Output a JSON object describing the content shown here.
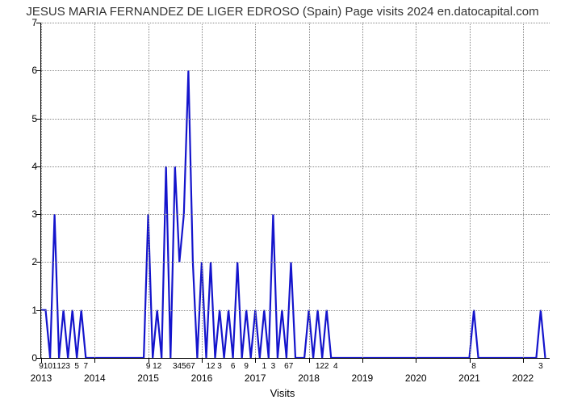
{
  "chart": {
    "type": "line",
    "title": "JESUS MARIA FERNANDEZ DE LIGER EDROSO (Spain) Page visits 2024 en.datocapital.com",
    "title_fontsize": 15,
    "background_color": "#ffffff",
    "line_color": "#1414cc",
    "line_width": 2.2,
    "grid_color": "#888888",
    "grid_dotted": true,
    "xaxis_title": "Visits",
    "label_fontsize": 12,
    "ylim": [
      0,
      7
    ],
    "ytick_step": 1,
    "year_start": 2013,
    "year_end": 2022,
    "years": [
      "2013",
      "2014",
      "2015",
      "2016",
      "2017",
      "2018",
      "2019",
      "2020",
      "2021",
      "2022"
    ],
    "minor_labels": [
      {
        "year": 2013,
        "sub": 0,
        "t": "9"
      },
      {
        "year": 2013,
        "sub": 1,
        "t": "1"
      },
      {
        "year": 2013,
        "sub": 2,
        "t": "0"
      },
      {
        "year": 2013,
        "sub": 3,
        "t": "1"
      },
      {
        "year": 2013,
        "sub": 4,
        "t": "1"
      },
      {
        "year": 2013,
        "sub": 5,
        "t": "2"
      },
      {
        "year": 2013,
        "sub": 6,
        "t": "3"
      },
      {
        "year": 2013,
        "sub": 8,
        "t": "5"
      },
      {
        "year": 2013,
        "sub": 10,
        "t": "7"
      },
      {
        "year": 2015,
        "sub": 0,
        "t": "9"
      },
      {
        "year": 2015,
        "sub": 2,
        "t": "12"
      },
      {
        "year": 2015,
        "sub": 6,
        "t": "3"
      },
      {
        "year": 2015,
        "sub": 7,
        "t": "4"
      },
      {
        "year": 2015,
        "sub": 8,
        "t": "5"
      },
      {
        "year": 2015,
        "sub": 9,
        "t": "6"
      },
      {
        "year": 2015,
        "sub": 10,
        "t": "7"
      },
      {
        "year": 2016,
        "sub": 2,
        "t": "12"
      },
      {
        "year": 2016,
        "sub": 4,
        "t": "3"
      },
      {
        "year": 2016,
        "sub": 7,
        "t": "6"
      },
      {
        "year": 2016,
        "sub": 10,
        "t": "9"
      },
      {
        "year": 2017,
        "sub": 2,
        "t": "1"
      },
      {
        "year": 2017,
        "sub": 4,
        "t": "3"
      },
      {
        "year": 2017,
        "sub": 7,
        "t": "6"
      },
      {
        "year": 2017,
        "sub": 8,
        "t": "7"
      },
      {
        "year": 2018,
        "sub": 2,
        "t": "1"
      },
      {
        "year": 2018,
        "sub": 3,
        "t": "2"
      },
      {
        "year": 2018,
        "sub": 4,
        "t": "2"
      },
      {
        "year": 2018,
        "sub": 6,
        "t": "4"
      },
      {
        "year": 2021,
        "sub": 1,
        "t": "8"
      },
      {
        "year": 2022,
        "sub": 4,
        "t": "3"
      }
    ],
    "series": [
      {
        "year": 2013,
        "sub": 0,
        "v": 1
      },
      {
        "year": 2013,
        "sub": 1,
        "v": 1
      },
      {
        "year": 2013,
        "sub": 2,
        "v": 0
      },
      {
        "year": 2013,
        "sub": 3,
        "v": 3
      },
      {
        "year": 2013,
        "sub": 4,
        "v": 0
      },
      {
        "year": 2013,
        "sub": 5,
        "v": 1
      },
      {
        "year": 2013,
        "sub": 6,
        "v": 0
      },
      {
        "year": 2013,
        "sub": 7,
        "v": 1
      },
      {
        "year": 2013,
        "sub": 8,
        "v": 0
      },
      {
        "year": 2013,
        "sub": 9,
        "v": 1
      },
      {
        "year": 2013,
        "sub": 10,
        "v": 0
      },
      {
        "year": 2013,
        "sub": 11,
        "v": 0
      },
      {
        "year": 2014,
        "sub": 0,
        "v": 0
      },
      {
        "year": 2014,
        "sub": 6,
        "v": 0
      },
      {
        "year": 2014,
        "sub": 11,
        "v": 0
      },
      {
        "year": 2015,
        "sub": 0,
        "v": 3
      },
      {
        "year": 2015,
        "sub": 1,
        "v": 0
      },
      {
        "year": 2015,
        "sub": 2,
        "v": 1
      },
      {
        "year": 2015,
        "sub": 3,
        "v": 0
      },
      {
        "year": 2015,
        "sub": 4,
        "v": 4
      },
      {
        "year": 2015,
        "sub": 5,
        "v": 0
      },
      {
        "year": 2015,
        "sub": 6,
        "v": 4
      },
      {
        "year": 2015,
        "sub": 7,
        "v": 2
      },
      {
        "year": 2015,
        "sub": 8,
        "v": 3
      },
      {
        "year": 2015,
        "sub": 9,
        "v": 6
      },
      {
        "year": 2015,
        "sub": 10,
        "v": 2
      },
      {
        "year": 2015,
        "sub": 11,
        "v": 0
      },
      {
        "year": 2016,
        "sub": 0,
        "v": 2
      },
      {
        "year": 2016,
        "sub": 1,
        "v": 0
      },
      {
        "year": 2016,
        "sub": 2,
        "v": 2
      },
      {
        "year": 2016,
        "sub": 3,
        "v": 0
      },
      {
        "year": 2016,
        "sub": 4,
        "v": 1
      },
      {
        "year": 2016,
        "sub": 5,
        "v": 0
      },
      {
        "year": 2016,
        "sub": 6,
        "v": 1
      },
      {
        "year": 2016,
        "sub": 7,
        "v": 0
      },
      {
        "year": 2016,
        "sub": 8,
        "v": 2
      },
      {
        "year": 2016,
        "sub": 9,
        "v": 0
      },
      {
        "year": 2016,
        "sub": 10,
        "v": 1
      },
      {
        "year": 2016,
        "sub": 11,
        "v": 0
      },
      {
        "year": 2017,
        "sub": 0,
        "v": 1
      },
      {
        "year": 2017,
        "sub": 1,
        "v": 0
      },
      {
        "year": 2017,
        "sub": 2,
        "v": 1
      },
      {
        "year": 2017,
        "sub": 3,
        "v": 0
      },
      {
        "year": 2017,
        "sub": 4,
        "v": 3
      },
      {
        "year": 2017,
        "sub": 5,
        "v": 0
      },
      {
        "year": 2017,
        "sub": 6,
        "v": 1
      },
      {
        "year": 2017,
        "sub": 7,
        "v": 0
      },
      {
        "year": 2017,
        "sub": 8,
        "v": 2
      },
      {
        "year": 2017,
        "sub": 9,
        "v": 0
      },
      {
        "year": 2017,
        "sub": 10,
        "v": 0
      },
      {
        "year": 2017,
        "sub": 11,
        "v": 0
      },
      {
        "year": 2018,
        "sub": 0,
        "v": 1
      },
      {
        "year": 2018,
        "sub": 1,
        "v": 0
      },
      {
        "year": 2018,
        "sub": 2,
        "v": 1
      },
      {
        "year": 2018,
        "sub": 3,
        "v": 0
      },
      {
        "year": 2018,
        "sub": 4,
        "v": 1
      },
      {
        "year": 2018,
        "sub": 5,
        "v": 0
      },
      {
        "year": 2018,
        "sub": 6,
        "v": 0
      },
      {
        "year": 2018,
        "sub": 7,
        "v": 0
      },
      {
        "year": 2018,
        "sub": 11,
        "v": 0
      },
      {
        "year": 2019,
        "sub": 0,
        "v": 0
      },
      {
        "year": 2019,
        "sub": 11,
        "v": 0
      },
      {
        "year": 2020,
        "sub": 0,
        "v": 0
      },
      {
        "year": 2020,
        "sub": 11,
        "v": 0
      },
      {
        "year": 2021,
        "sub": 0,
        "v": 0
      },
      {
        "year": 2021,
        "sub": 1,
        "v": 1
      },
      {
        "year": 2021,
        "sub": 2,
        "v": 0
      },
      {
        "year": 2021,
        "sub": 11,
        "v": 0
      },
      {
        "year": 2022,
        "sub": 0,
        "v": 0
      },
      {
        "year": 2022,
        "sub": 3,
        "v": 0
      },
      {
        "year": 2022,
        "sub": 4,
        "v": 1
      },
      {
        "year": 2022,
        "sub": 5,
        "v": 0
      }
    ]
  }
}
